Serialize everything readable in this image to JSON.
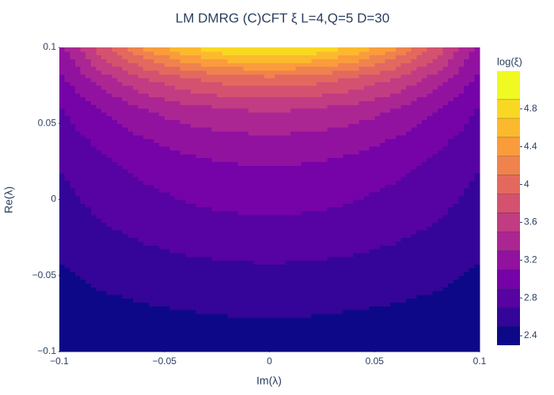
{
  "chart_data": {
    "type": "contour",
    "title": "LM DMRG (C)CFT ξ L=4,Q=5 D=30",
    "xlabel": "Im(λ)",
    "ylabel": "Re(λ)",
    "colorbar_title": "log(ξ)",
    "x": [
      -0.1,
      -0.08,
      -0.06,
      -0.04,
      -0.02,
      0,
      0.02,
      0.04,
      0.06,
      0.08,
      0.1
    ],
    "y": [
      -0.1,
      -0.08,
      -0.06,
      -0.04,
      -0.02,
      0,
      0.02,
      0.04,
      0.06,
      0.08,
      0.1
    ],
    "z": [
      [
        2.28,
        2.31,
        2.32,
        2.34,
        2.35,
        2.35,
        2.35,
        2.34,
        2.32,
        2.31,
        2.28
      ],
      [
        2.36,
        2.4,
        2.44,
        2.46,
        2.48,
        2.48,
        2.48,
        2.46,
        2.44,
        2.4,
        2.36
      ],
      [
        2.44,
        2.5,
        2.54,
        2.57,
        2.59,
        2.6,
        2.59,
        2.57,
        2.54,
        2.5,
        2.44
      ],
      [
        2.5,
        2.58,
        2.63,
        2.68,
        2.7,
        2.71,
        2.7,
        2.68,
        2.63,
        2.58,
        2.5
      ],
      [
        2.58,
        2.67,
        2.75,
        2.8,
        2.83,
        2.84,
        2.83,
        2.8,
        2.75,
        2.67,
        2.58
      ],
      [
        2.64,
        2.76,
        2.84,
        2.91,
        2.95,
        2.96,
        2.95,
        2.91,
        2.84,
        2.76,
        2.64
      ],
      [
        2.7,
        2.84,
        2.94,
        3.02,
        3.06,
        3.08,
        3.06,
        3.02,
        2.94,
        2.84,
        2.7
      ],
      [
        2.79,
        2.96,
        3.09,
        3.18,
        3.24,
        3.26,
        3.24,
        3.18,
        3.09,
        2.96,
        2.79
      ],
      [
        2.88,
        3.11,
        3.3,
        3.43,
        3.5,
        3.53,
        3.5,
        3.43,
        3.3,
        3.11,
        2.88
      ],
      [
        3.05,
        3.41,
        3.69,
        3.89,
        4.01,
        4.05,
        4.01,
        3.89,
        3.69,
        3.41,
        3.05
      ],
      [
        3.2,
        3.83,
        4.32,
        4.67,
        4.88,
        4.95,
        4.88,
        4.67,
        4.32,
        3.83,
        3.2
      ]
    ],
    "contours": {
      "start": 2.5,
      "end": 4.9,
      "size": 0.2
    },
    "zlim": [
      2.3,
      5.2
    ],
    "colorscale": [
      "#0d0887",
      "#46039f",
      "#7201a8",
      "#9c179e",
      "#bd3786",
      "#d8576b",
      "#ed7953",
      "#fb9f3a",
      "#fdca26",
      "#f0f921"
    ],
    "xlim": [
      -0.1,
      0.1
    ],
    "ylim": [
      -0.1,
      0.1
    ],
    "xticks": [
      {
        "value": -0.1,
        "label": "−0.1"
      },
      {
        "value": -0.05,
        "label": "−0.05"
      },
      0,
      0.05,
      0.1
    ],
    "yticks": [
      {
        "value": -0.1,
        "label": "−0.1"
      },
      {
        "value": -0.05,
        "label": "−0.05"
      },
      0,
      0.05,
      0.1
    ],
    "zticks": [
      2.4,
      2.8,
      3.2,
      3.6,
      4,
      4.4,
      4.8
    ]
  }
}
